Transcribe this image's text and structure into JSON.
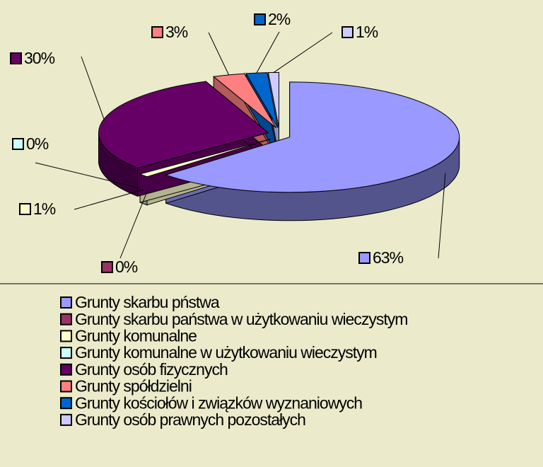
{
  "chart_data": {
    "type": "pie",
    "categories": [
      "Grunty skarbu pństwa",
      "Grunty skarbu państwa w użytkowaniu wieczystym",
      "Grunty komunalne",
      "Grunty komunalne w użytkowaniu wieczystym",
      "Grunty osób fizycznych",
      "Grunty spółdzielni",
      "Grunty kościołów i związków wyznaniowych",
      "Grunty osób prawnych pozostałych"
    ],
    "values": [
      63,
      0,
      1,
      0,
      30,
      3,
      2,
      1
    ],
    "value_labels": [
      "63%",
      "0%",
      "1%",
      "0%",
      "30%",
      "3%",
      "2%",
      "1%"
    ],
    "colors": [
      "#9999ff",
      "#993366",
      "#ffffcc",
      "#ccffff",
      "#660066",
      "#ff8080",
      "#0066cc",
      "#ccccff"
    ]
  }
}
